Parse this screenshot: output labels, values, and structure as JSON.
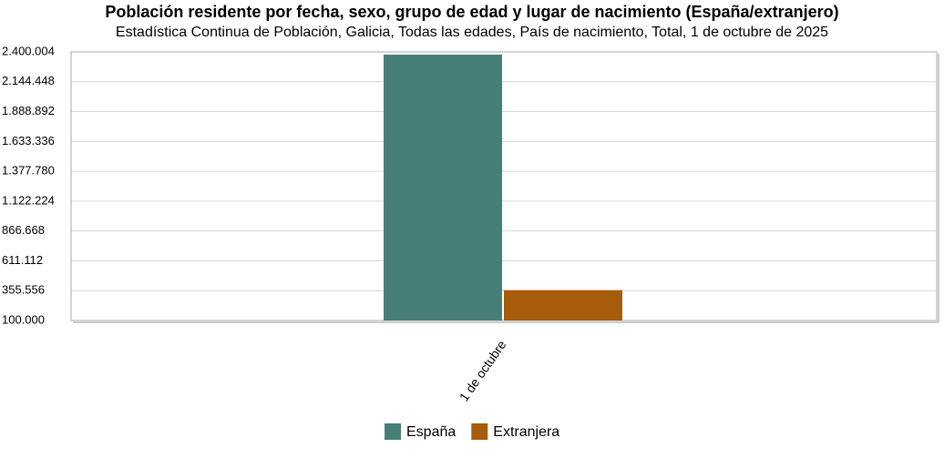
{
  "chart_data": {
    "type": "bar",
    "title": "Población residente por fecha, sexo, grupo de edad y lugar de nacimiento (España/extranjero)",
    "subtitle": "Estadística Continua de Población, Galicia, Todas las edades, País de nacimiento, Total, 1 de octubre de 2025",
    "categories": [
      "1 de octubre"
    ],
    "series": [
      {
        "name": "España",
        "color": "#467f77",
        "values": [
          2377000
        ]
      },
      {
        "name": "Extranjera",
        "color": "#a65c0b",
        "values": [
          360000
        ]
      }
    ],
    "ylim": [
      100000,
      2400004
    ],
    "yticks": [
      {
        "value": 100000,
        "label": "100.000"
      },
      {
        "value": 355556,
        "label": "355.556"
      },
      {
        "value": 611112,
        "label": "611.112"
      },
      {
        "value": 866668,
        "label": "866.668"
      },
      {
        "value": 1122224,
        "label": "1.122.224"
      },
      {
        "value": 1377780,
        "label": "1.377.780"
      },
      {
        "value": 1633336,
        "label": "1.633.336"
      },
      {
        "value": 1888892,
        "label": "1.888.892"
      },
      {
        "value": 2144448,
        "label": "2.144.448"
      },
      {
        "value": 2400004,
        "label": "2.400.004"
      }
    ],
    "grid": true
  }
}
